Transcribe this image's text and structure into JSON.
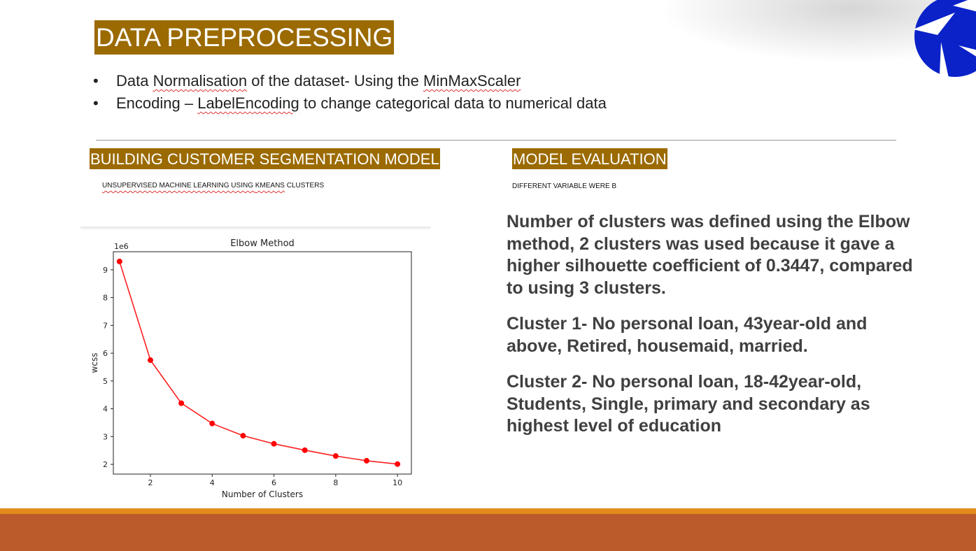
{
  "slide": {
    "title": "DATA PREPROCESSING",
    "bullets": [
      {
        "pre": "Data ",
        "em": "Normalisation",
        "mid": " of the dataset- Using the ",
        "em2": "MinMaxScaler",
        "post": ""
      },
      {
        "pre": "Encoding – ",
        "em": "LabelEncoding",
        "mid": " to change categorical data to numerical data",
        "em2": "",
        "post": ""
      }
    ],
    "left_section": {
      "title": "BUILDING CUSTOMER SEGMENTATION MODEL",
      "subtitle_pre": "UNSUPERVISED MACHINE LEARNING USING ",
      "subtitle_em": "KMEANS",
      "subtitle_post": " CLUSTERS"
    },
    "right_section": {
      "title": "MODEL EVALUATION",
      "subtitle": "DIFFERENT VARIABLE WERE B",
      "paragraphs": [
        "Number of clusters was defined using the Elbow method, 2 clusters was used because it gave a higher silhouette coefficient of 0.3447, compared to using 3 clusters.",
        "Cluster 1- No personal loan, 43year-old and above, Retired, housemaid, married.",
        "Cluster 2- No personal loan, 18-42year-old, Students, Single, primary and secondary as highest level of education"
      ]
    },
    "colors": {
      "title_bg": "#9b6a00",
      "accent_stripe": "#e38b1a",
      "bottom_band": "#bb5a2b",
      "logo": "#0a22c8",
      "series": "#ff0000"
    },
    "logo_icon": "aperture-logo-icon"
  },
  "chart_data": {
    "type": "line",
    "title": "Elbow Method",
    "xlabel": "Number of Clusters",
    "ylabel": "wcss",
    "y_scale_label": "1e6",
    "x": [
      1,
      2,
      3,
      4,
      5,
      6,
      7,
      8,
      9,
      10
    ],
    "values": [
      9.3,
      5.75,
      4.2,
      3.47,
      3.03,
      2.74,
      2.51,
      2.3,
      2.13,
      2.01
    ],
    "xlim": [
      0.8,
      10.45
    ],
    "ylim": [
      1.65,
      9.65
    ],
    "xticks": [
      2,
      4,
      6,
      8,
      10
    ],
    "yticks": [
      2,
      3,
      4,
      5,
      6,
      7,
      8,
      9
    ],
    "marker": "circle",
    "grid": false
  }
}
